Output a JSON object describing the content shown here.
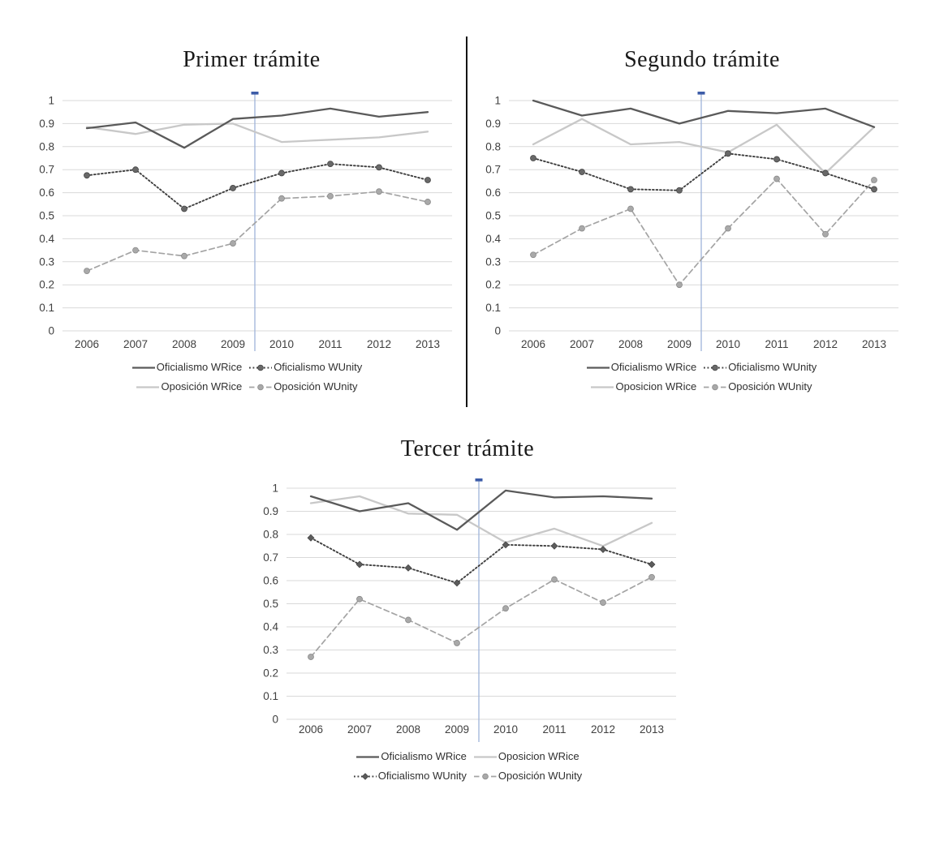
{
  "figure": {
    "background": "#ffffff",
    "divider": {
      "orientation": "vertical",
      "color": "#141414"
    }
  },
  "chart_data": [
    {
      "type": "line",
      "title": "Primer trámite",
      "x": [
        2006,
        2007,
        2008,
        2009,
        2010,
        2011,
        2012,
        2013
      ],
      "xlabel": "",
      "ylabel": "",
      "ylim": [
        0,
        1
      ],
      "yticks": [
        "1",
        "0.9",
        "0.8",
        "0.7",
        "0.6",
        "0.5",
        "0.4",
        "0.3",
        "0.2",
        "0.1",
        "0"
      ],
      "grid": true,
      "grid_color": "#d9d9d9",
      "legend_position": "bottom",
      "vline": {
        "between": [
          2009,
          2010
        ],
        "color": "#9fb4da",
        "cap_color": "#3c5ca8"
      },
      "series": [
        {
          "name": "Oficialismo WRice",
          "line": "solid",
          "color": "#5a5a5a",
          "marker": "none",
          "values": [
            0.88,
            0.905,
            0.795,
            0.92,
            0.935,
            0.965,
            0.93,
            0.95
          ]
        },
        {
          "name": "Oficialismo WUnity",
          "line": "dotted",
          "color": "#3f3f3f",
          "marker": "circle",
          "marker_fill": "#696969",
          "marker_stroke": "#454545",
          "values": [
            0.675,
            0.7,
            0.53,
            0.62,
            0.685,
            0.725,
            0.71,
            0.655
          ]
        },
        {
          "name": "Oposición WRice",
          "line": "solid",
          "color": "#c8c8c8",
          "marker": "none",
          "values": [
            0.885,
            0.855,
            0.895,
            0.9,
            0.82,
            0.83,
            0.84,
            0.865
          ]
        },
        {
          "name": "Oposición WUnity",
          "line": "dashed",
          "color": "#a4a4a4",
          "marker": "circle",
          "marker_fill": "#a9a9a9",
          "marker_stroke": "#8a8a8a",
          "values": [
            0.26,
            0.35,
            0.325,
            0.38,
            0.575,
            0.585,
            0.605,
            0.56
          ]
        }
      ],
      "legend_rows": [
        [
          "Oficialismo WRice",
          "Oficialismo WUnity"
        ],
        [
          "Oposición WRice",
          "Oposición WUnity"
        ]
      ]
    },
    {
      "type": "line",
      "title": "Segundo trámite",
      "x": [
        2006,
        2007,
        2008,
        2009,
        2010,
        2011,
        2012,
        2013
      ],
      "xlabel": "",
      "ylabel": "",
      "ylim": [
        0,
        1
      ],
      "yticks": [
        "1",
        "0.9",
        "0.8",
        "0.7",
        "0.6",
        "0.5",
        "0.4",
        "0.3",
        "0.2",
        "0.1",
        "0"
      ],
      "grid": true,
      "grid_color": "#d9d9d9",
      "legend_position": "bottom",
      "vline": {
        "between": [
          2009,
          2010
        ],
        "color": "#9fb4da",
        "cap_color": "#3c5ca8"
      },
      "series": [
        {
          "name": "Oficialismo WRice",
          "line": "solid",
          "color": "#5a5a5a",
          "marker": "none",
          "values": [
            1.0,
            0.935,
            0.965,
            0.9,
            0.955,
            0.945,
            0.965,
            0.885
          ]
        },
        {
          "name": "Oficialismo WUnity",
          "line": "dotted",
          "color": "#3f3f3f",
          "marker": "circle",
          "marker_fill": "#696969",
          "marker_stroke": "#454545",
          "values": [
            0.75,
            0.69,
            0.615,
            0.61,
            0.77,
            0.745,
            0.685,
            0.615
          ]
        },
        {
          "name": "Oposicion WRice",
          "line": "solid",
          "color": "#c8c8c8",
          "marker": "none",
          "values": [
            0.81,
            0.92,
            0.81,
            0.82,
            0.775,
            0.895,
            0.685,
            0.885
          ]
        },
        {
          "name": "Oposición WUnity",
          "line": "dashed",
          "color": "#a4a4a4",
          "marker": "circle",
          "marker_fill": "#a9a9a9",
          "marker_stroke": "#8a8a8a",
          "values": [
            0.33,
            0.445,
            0.53,
            0.2,
            0.445,
            0.66,
            0.42,
            0.655
          ]
        }
      ],
      "legend_rows": [
        [
          "Oficialismo WRice",
          "Oficialismo WUnity"
        ],
        [
          "Oposicion WRice",
          "Oposición WUnity"
        ]
      ]
    },
    {
      "type": "line",
      "title": "Tercer trámite",
      "x": [
        2006,
        2007,
        2008,
        2009,
        2010,
        2011,
        2012,
        2013
      ],
      "xlabel": "",
      "ylabel": "",
      "ylim": [
        0,
        1
      ],
      "yticks": [
        "1",
        "0.9",
        "0.8",
        "0.7",
        "0.6",
        "0.5",
        "0.4",
        "0.3",
        "0.2",
        "0.1",
        "0"
      ],
      "grid": true,
      "grid_color": "#d9d9d9",
      "legend_position": "bottom",
      "vline": {
        "between": [
          2009,
          2010
        ],
        "color": "#9fb4da",
        "cap_color": "#3c5ca8"
      },
      "series": [
        {
          "name": "Oficialismo WRice",
          "line": "solid",
          "color": "#5a5a5a",
          "marker": "none",
          "values": [
            0.965,
            0.9,
            0.935,
            0.82,
            0.99,
            0.96,
            0.965,
            0.955
          ]
        },
        {
          "name": "Oficialismo WUnity",
          "line": "dotted",
          "color": "#3f3f3f",
          "marker": "diamond",
          "marker_fill": "#5c5c5c",
          "marker_stroke": "#454545",
          "values": [
            0.785,
            0.67,
            0.655,
            0.59,
            0.755,
            0.75,
            0.735,
            0.67
          ]
        },
        {
          "name": "Oposicion WRice",
          "line": "solid",
          "color": "#c8c8c8",
          "marker": "none",
          "values": [
            0.935,
            0.965,
            0.89,
            0.885,
            0.765,
            0.825,
            0.75,
            0.85
          ]
        },
        {
          "name": "Oposición WUnity",
          "line": "dashed",
          "color": "#a4a4a4",
          "marker": "circle",
          "marker_fill": "#a9a9a9",
          "marker_stroke": "#8a8a8a",
          "values": [
            0.27,
            0.52,
            0.43,
            0.33,
            0.48,
            0.605,
            0.505,
            0.615
          ]
        }
      ],
      "legend_rows": [
        [
          "Oficialismo WRice",
          "Oposicion WRice"
        ],
        [
          "Oficialismo WUnity",
          "Oposición WUnity"
        ]
      ]
    }
  ]
}
